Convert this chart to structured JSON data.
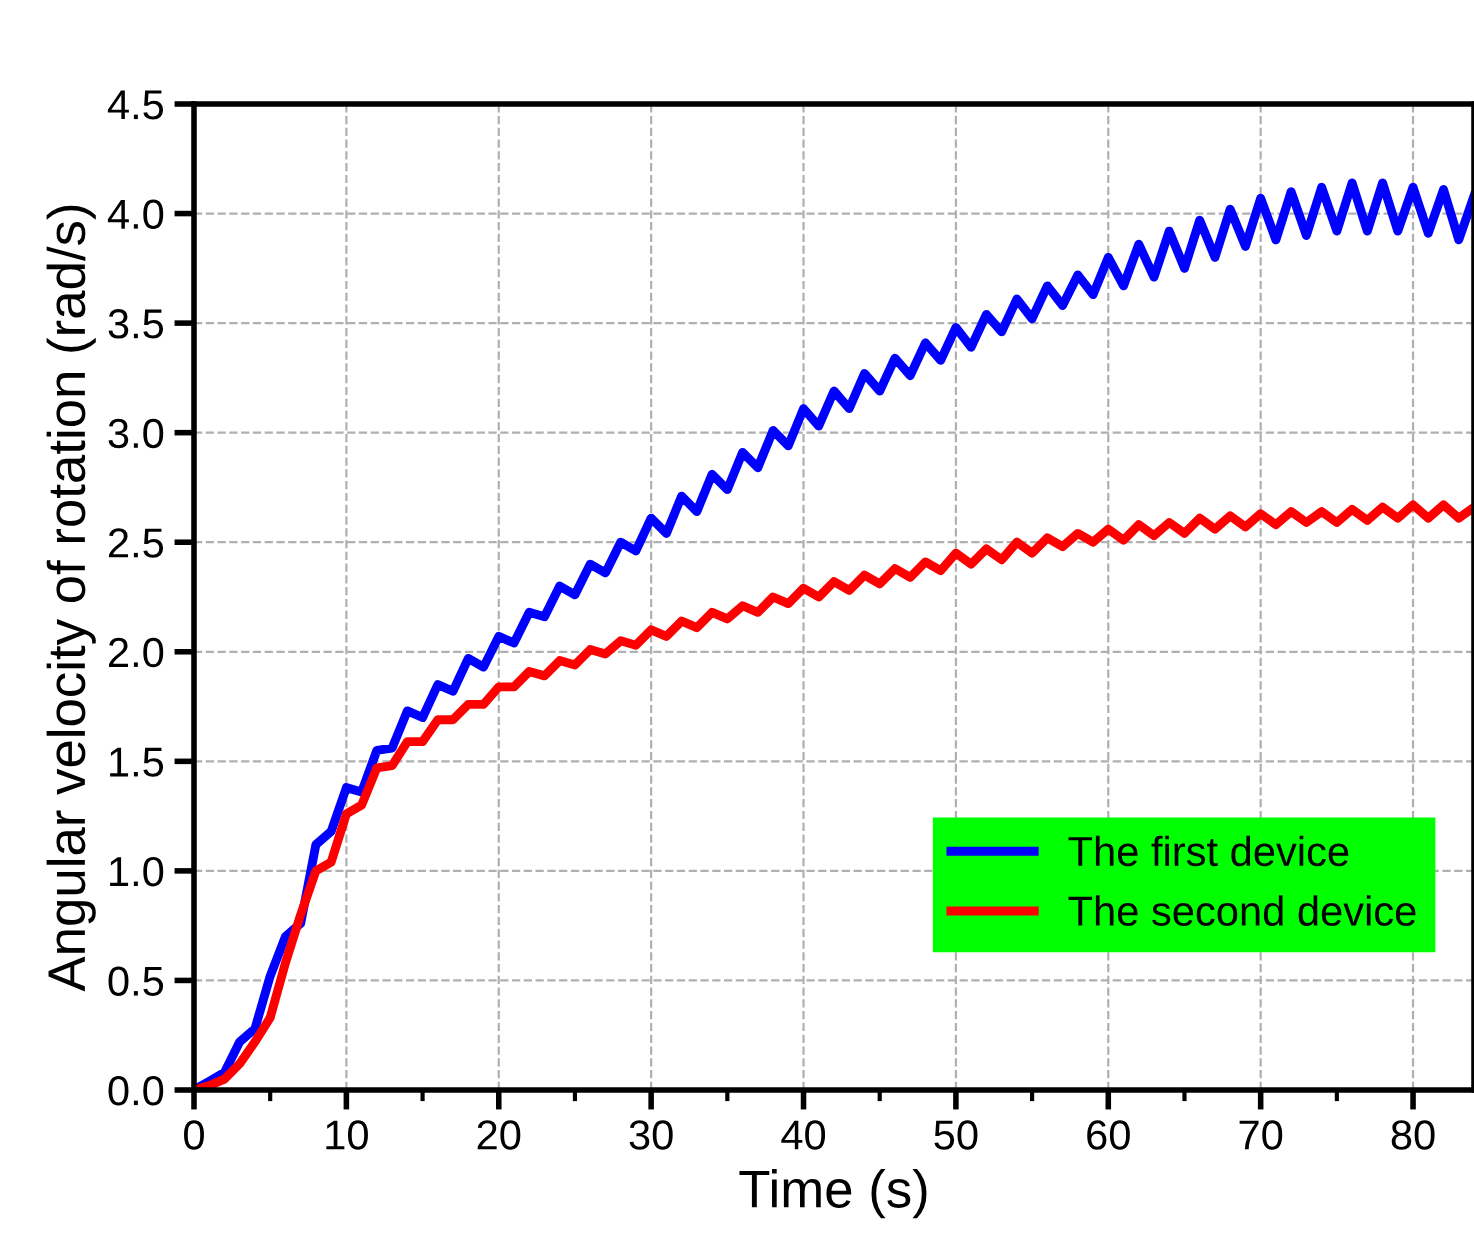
{
  "chart_data": {
    "type": "line",
    "xlabel": "Time (s)",
    "ylabel": "Angular velocity of rotation (rad/s)",
    "x": [
      0,
      1,
      2,
      3,
      4,
      5,
      6,
      7,
      8,
      9,
      10,
      11,
      12,
      13,
      14,
      15,
      16,
      17,
      18,
      19,
      20,
      21,
      22,
      23,
      24,
      25,
      26,
      27,
      28,
      29,
      30,
      31,
      32,
      33,
      34,
      35,
      36,
      37,
      38,
      39,
      40,
      41,
      42,
      43,
      44,
      45,
      46,
      47,
      48,
      49,
      50,
      51,
      52,
      53,
      54,
      55,
      56,
      57,
      58,
      59,
      60,
      61,
      62,
      63,
      64,
      65,
      66,
      67,
      68,
      69,
      70,
      71,
      72,
      73,
      74,
      75,
      76,
      77,
      78,
      79,
      80,
      81,
      82,
      83,
      84
    ],
    "series": [
      {
        "name": "The first device",
        "color": "#0000ff",
        "values": [
          0.0,
          0.04,
          0.08,
          0.22,
          0.28,
          0.52,
          0.7,
          0.76,
          1.12,
          1.18,
          1.38,
          1.36,
          1.55,
          1.56,
          1.73,
          1.7,
          1.85,
          1.82,
          1.97,
          1.93,
          2.07,
          2.04,
          2.18,
          2.16,
          2.3,
          2.26,
          2.4,
          2.36,
          2.5,
          2.46,
          2.61,
          2.54,
          2.71,
          2.64,
          2.81,
          2.74,
          2.91,
          2.84,
          3.01,
          2.94,
          3.11,
          3.03,
          3.19,
          3.11,
          3.27,
          3.19,
          3.34,
          3.26,
          3.41,
          3.33,
          3.48,
          3.39,
          3.54,
          3.46,
          3.61,
          3.52,
          3.67,
          3.58,
          3.72,
          3.63,
          3.8,
          3.67,
          3.86,
          3.71,
          3.92,
          3.75,
          3.97,
          3.8,
          4.02,
          3.85,
          4.07,
          3.88,
          4.1,
          3.9,
          4.12,
          3.92,
          4.14,
          3.92,
          4.14,
          3.92,
          4.12,
          3.91,
          4.11,
          3.88,
          4.08
        ]
      },
      {
        "name": "The second device",
        "color": "#ff0000",
        "values": [
          0,
          0.02,
          0.05,
          0.12,
          0.22,
          0.33,
          0.58,
          0.8,
          1.0,
          1.04,
          1.26,
          1.3,
          1.47,
          1.48,
          1.59,
          1.59,
          1.69,
          1.69,
          1.76,
          1.76,
          1.84,
          1.84,
          1.91,
          1.89,
          1.96,
          1.94,
          2.01,
          1.99,
          2.05,
          2.03,
          2.1,
          2.07,
          2.14,
          2.11,
          2.18,
          2.15,
          2.21,
          2.18,
          2.25,
          2.22,
          2.29,
          2.25,
          2.32,
          2.28,
          2.35,
          2.31,
          2.38,
          2.34,
          2.41,
          2.37,
          2.45,
          2.4,
          2.47,
          2.42,
          2.5,
          2.45,
          2.52,
          2.48,
          2.54,
          2.5,
          2.56,
          2.51,
          2.58,
          2.53,
          2.59,
          2.54,
          2.61,
          2.56,
          2.62,
          2.57,
          2.63,
          2.58,
          2.64,
          2.59,
          2.64,
          2.59,
          2.65,
          2.6,
          2.66,
          2.61,
          2.67,
          2.61,
          2.67,
          2.61,
          2.66
        ]
      }
    ],
    "xlim": [
      0,
      84
    ],
    "ylim": [
      0,
      4.5
    ],
    "xticks": [
      0,
      {
        "value": 5,
        "label": null
      },
      10,
      {
        "value": 15,
        "label": null
      },
      20,
      {
        "value": 25,
        "label": null
      },
      30,
      {
        "value": 35,
        "label": null
      },
      40,
      {
        "value": 45,
        "label": null
      },
      50,
      {
        "value": 55,
        "label": null
      },
      60,
      {
        "value": 65,
        "label": null
      },
      70,
      {
        "value": 75,
        "label": null
      },
      80
    ],
    "yticks": [
      {
        "value": 0,
        "label": "0.0"
      },
      {
        "value": 0.5,
        "label": "0.5"
      },
      {
        "value": 1,
        "label": "1.0"
      },
      {
        "value": 1.5,
        "label": "1.5"
      },
      {
        "value": 2,
        "label": "2.0"
      },
      {
        "value": 2.5,
        "label": "2.5"
      },
      {
        "value": 3,
        "label": "3.0"
      },
      {
        "value": 3.5,
        "label": "3.5"
      },
      {
        "value": 4,
        "label": "4.0"
      },
      {
        "value": 4.5,
        "label": "4.5"
      }
    ],
    "grid": true,
    "legend": "bottom right",
    "line_style": "solid"
  }
}
